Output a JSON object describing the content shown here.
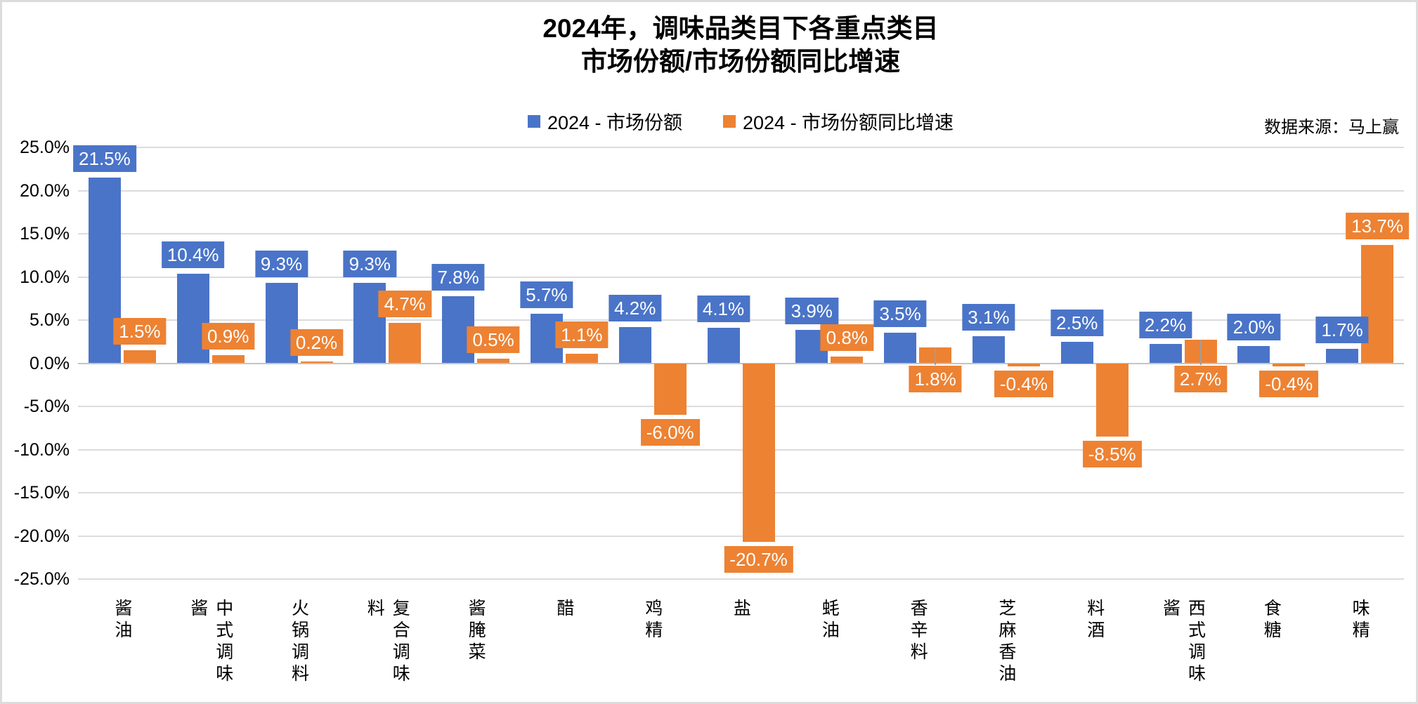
{
  "page": {
    "title_line1": "2024年，调味品类目下各重点类目",
    "title_line2": "市场份额/市场份额同比增速",
    "source": "数据来源：马上赢"
  },
  "legend": {
    "items": [
      {
        "label": "2024 - 市场份额",
        "color": "#4a74c8"
      },
      {
        "label": "2024 - 市场份额同比增速",
        "color": "#ed8233"
      }
    ]
  },
  "chart_data": {
    "type": "bar",
    "title": "2024年，调味品类目下各重点类目 市场份额/市场份额同比增速",
    "categories": [
      "酱油",
      "中式调味酱",
      "火锅调料",
      "复合调味料",
      "酱腌菜",
      "醋",
      "鸡精",
      "盐",
      "蚝油",
      "香辛料",
      "芝麻香油",
      "料酒",
      "西式调味酱",
      "食糖",
      "味精"
    ],
    "series": [
      {
        "name": "2024 - 市场份额",
        "color": "#4a74c8",
        "values": [
          21.5,
          10.4,
          9.3,
          9.3,
          7.8,
          5.7,
          4.2,
          4.1,
          3.9,
          3.5,
          3.1,
          2.5,
          2.2,
          2.0,
          1.7
        ]
      },
      {
        "name": "2024 - 市场份额同比增速",
        "color": "#ed8233",
        "values": [
          1.5,
          0.9,
          0.2,
          4.7,
          0.5,
          1.1,
          -6.0,
          -20.7,
          0.8,
          1.8,
          -0.4,
          -8.5,
          2.7,
          -0.4,
          13.7
        ],
        "label_below_axis_indices": [
          9,
          12
        ]
      }
    ],
    "xlabel": "",
    "ylabel": "",
    "ylim": [
      -25,
      25
    ],
    "ytick_step": 5,
    "ytick_labels": [
      "25.0%",
      "20.0%",
      "15.0%",
      "10.0%",
      "5.0%",
      "0.0%",
      "-5.0%",
      "-10.0%",
      "-15.0%",
      "-20.0%",
      "-25.0%"
    ],
    "grid": true,
    "legend_position": "top",
    "value_suffix": "%"
  }
}
